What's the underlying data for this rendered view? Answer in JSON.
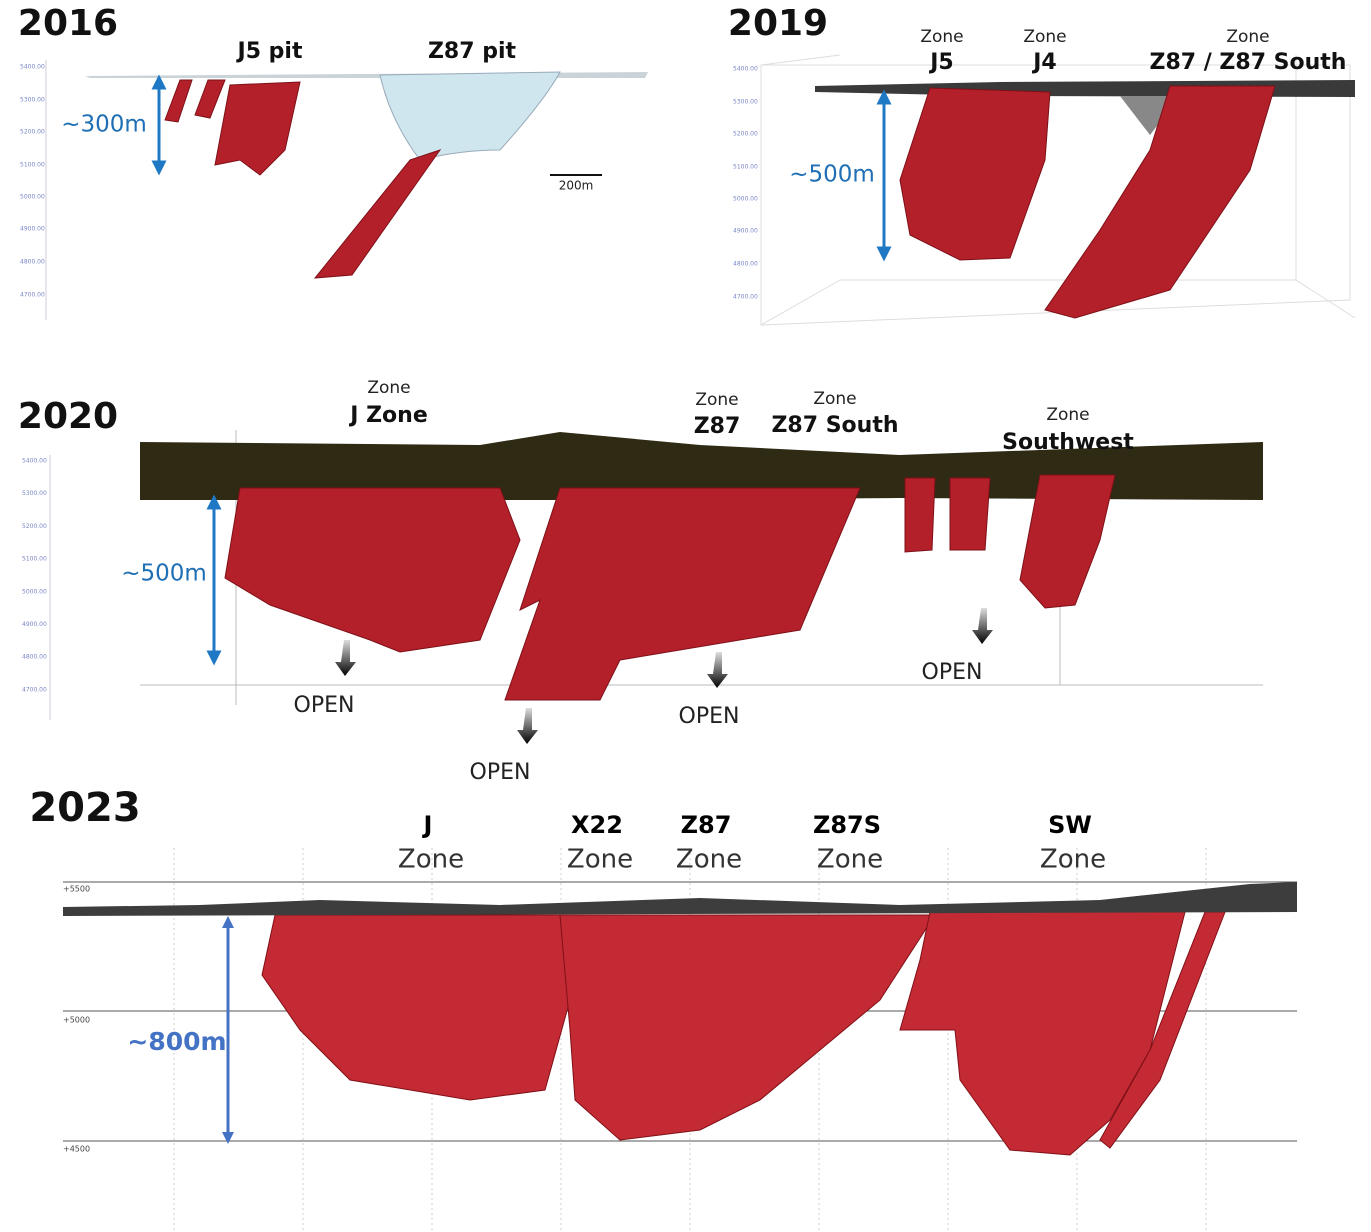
{
  "panels": [
    {
      "year": "2016",
      "labels": [
        "J5 pit",
        "Z87 pit"
      ],
      "depth": "~300m",
      "scale_bar": "200m",
      "axis_labels": [
        "5400.00",
        "5300.00",
        "5200.00",
        "5100.00",
        "5000.00",
        "4900.00",
        "4800.00",
        "4700.00"
      ]
    },
    {
      "year": "2019",
      "zones": [
        {
          "prefix": "Zone",
          "name": "J5"
        },
        {
          "prefix": "Zone",
          "name": "J4"
        },
        {
          "prefix": "Zone",
          "name": "Z87 / Z87 South"
        }
      ],
      "depth": "~500m",
      "axis_labels": [
        "5400.00",
        "5300.00",
        "5200.00",
        "5100.00",
        "5000.00",
        "4900.00",
        "4800.00",
        "4700.00"
      ]
    },
    {
      "year": "2020",
      "zones": [
        {
          "prefix": "Zone",
          "name": "J Zone"
        },
        {
          "prefix": "Zone",
          "name": "Z87"
        },
        {
          "prefix": "Zone",
          "name": "Z87 South"
        },
        {
          "prefix": "Zone",
          "name": "Southwest"
        }
      ],
      "depth": "~500m",
      "open_labels": [
        "OPEN",
        "OPEN",
        "OPEN",
        "OPEN"
      ],
      "axis_labels": [
        "5400.00",
        "5300.00",
        "5200.00",
        "5100.00",
        "5000.00",
        "4900.00",
        "4800.00",
        "4700.00"
      ]
    },
    {
      "year": "2023",
      "zones": [
        {
          "name": "J",
          "suffix": "Zone"
        },
        {
          "name": "X22",
          "suffix": "Zone"
        },
        {
          "name": "Z87",
          "suffix": "Zone"
        },
        {
          "name": "Z87S",
          "suffix": "Zone"
        },
        {
          "name": "SW",
          "suffix": "Zone"
        }
      ],
      "depth": "~800m",
      "axis_labels": [
        "+5500",
        "+5000",
        "+4500"
      ]
    }
  ]
}
